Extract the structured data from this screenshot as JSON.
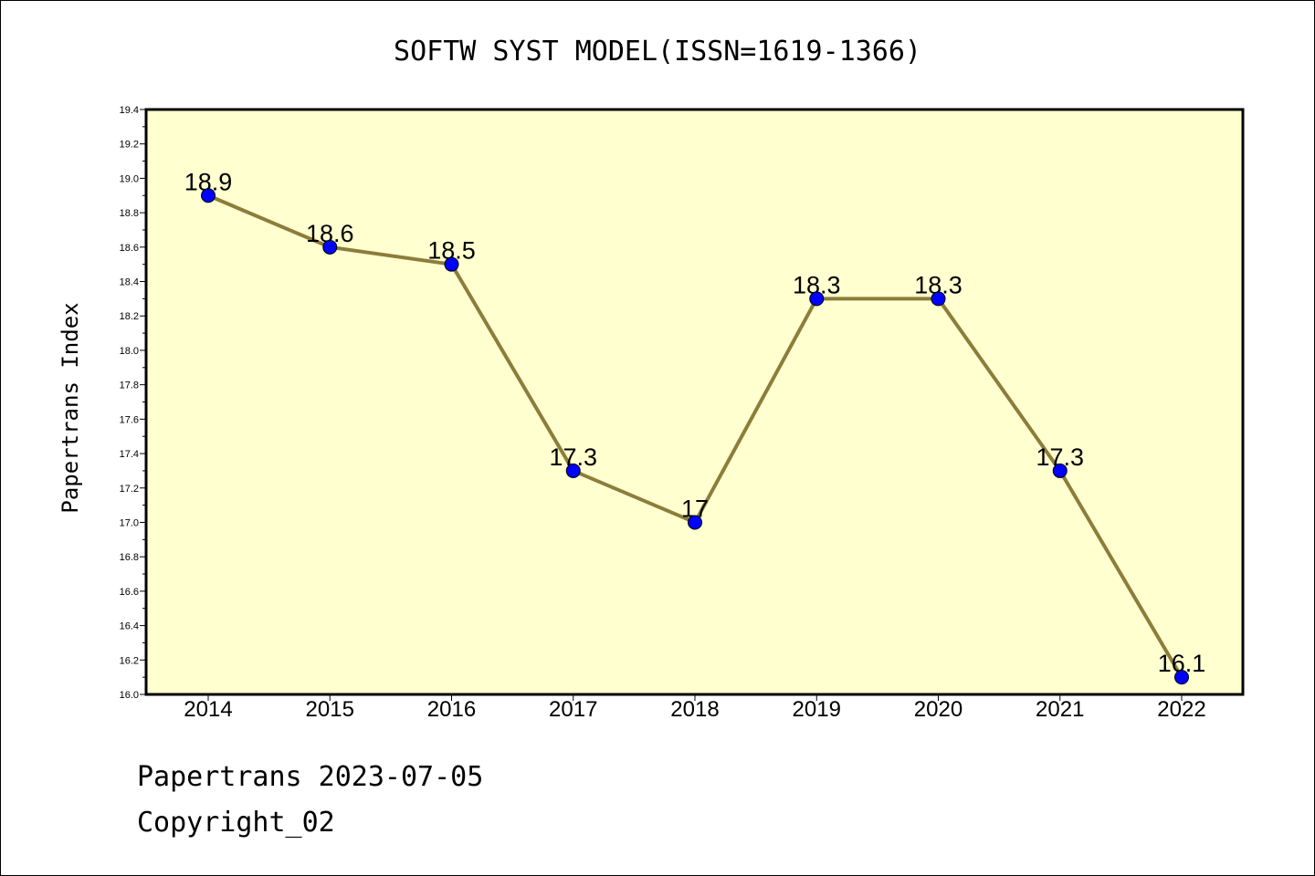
{
  "footer": {
    "line1": "Papertrans 2023-07-05",
    "line2": "Copyright_02"
  },
  "chart_data": {
    "type": "line",
    "title": "SOFTW SYST MODEL(ISSN=1619-1366)",
    "xlabel": "",
    "ylabel": "Papertrans Index",
    "categories": [
      "2014",
      "2015",
      "2016",
      "2017",
      "2018",
      "2019",
      "2020",
      "2021",
      "2022"
    ],
    "values": [
      18.9,
      18.6,
      18.5,
      17.3,
      17.0,
      18.3,
      18.3,
      17.3,
      16.1
    ],
    "data_labels": [
      "18.9",
      "18.6",
      "18.5",
      "17.3",
      "17",
      "18.3",
      "18.3",
      "17.3",
      "16.1"
    ],
    "ylim": [
      16.0,
      19.4
    ],
    "yticks": [
      "16.0",
      "16.2",
      "16.4",
      "16.6",
      "16.8",
      "17.0",
      "17.2",
      "17.4",
      "17.6",
      "17.8",
      "18.0",
      "18.2",
      "18.4",
      "18.6",
      "18.8",
      "19.0",
      "19.2",
      "19.4"
    ],
    "grid": false,
    "legend": "none",
    "colors": {
      "plot_background": "#ffffd0",
      "line": "#8b7d3a",
      "marker": "#0000ff"
    }
  }
}
